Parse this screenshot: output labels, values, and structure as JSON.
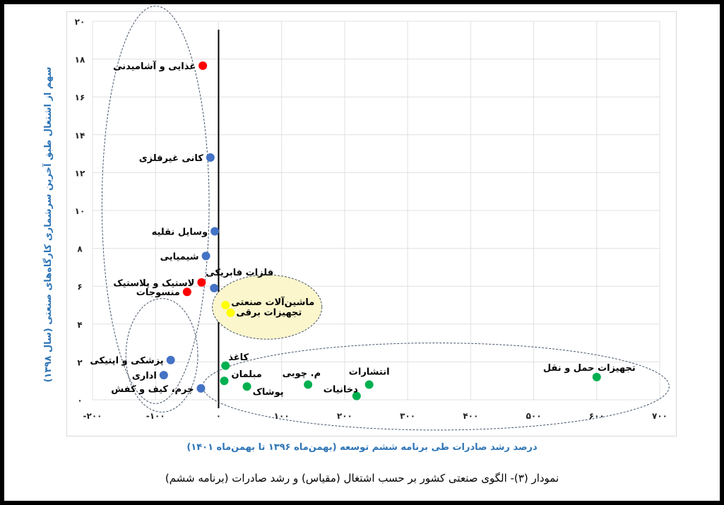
{
  "chart_data": {
    "type": "scatter",
    "title": "نمودار (۳)- الگوی صنعتی کشور بر حسب اشتغال (مقیاس) و رشد صادرات (برنامه ششم)",
    "xlabel": "درصد رشد صادرات طی برنامه ششم توسعه (بهمن‌ماه ۱۳۹۶ تا بهمن‌ماه ۱۴۰۱)",
    "ylabel": "سهم از اشتغال طبق آخرین سرشماری کارگاه‌های صنعتی (سال ۱۳۹۸)",
    "xlim": [
      -200,
      700
    ],
    "ylim": [
      0,
      20
    ],
    "x_ticks": [
      -200,
      -100,
      0,
      100,
      200,
      300,
      400,
      500,
      600,
      700
    ],
    "x_tick_labels": [
      "-۲۰۰",
      "-۱۰۰",
      "۰",
      "۱۰۰",
      "۲۰۰",
      "۳۰۰",
      "۴۰۰",
      "۵۰۰",
      "۶۰۰",
      "۷۰۰"
    ],
    "y_ticks": [
      0,
      2,
      4,
      6,
      8,
      10,
      12,
      14,
      16,
      18,
      20
    ],
    "y_tick_labels": [
      "۰",
      "۲",
      "۴",
      "۶",
      "۸",
      "۱۰",
      "۱۲",
      "۱۴",
      "۱۶",
      "۱۸",
      "۲۰"
    ],
    "grid": true,
    "colors": {
      "red": "#ff0000",
      "blue": "#4472c4",
      "yellow": "#ffff00",
      "green": "#00b050",
      "axis_label": "#2e75b6",
      "highlight_fill": "#fbf6cc"
    },
    "points": [
      {
        "label": "غذایی و آشامیدنی",
        "x": -25,
        "y": 17.65,
        "group": "red"
      },
      {
        "label": "کانی غیرفلزی",
        "x": -13,
        "y": 12.8,
        "group": "blue"
      },
      {
        "label": "وسایل نقلیه",
        "x": -6,
        "y": 8.9,
        "group": "blue"
      },
      {
        "label": "شیمیایی",
        "x": -20,
        "y": 7.6,
        "group": "blue"
      },
      {
        "label": "لاستیک و پلاستیک",
        "x": -27,
        "y": 6.2,
        "group": "red"
      },
      {
        "label": "فلزات فابریکی",
        "x": -7,
        "y": 5.9,
        "group": "blue"
      },
      {
        "label": "منسوجات",
        "x": -50,
        "y": 5.7,
        "group": "red"
      },
      {
        "label": "ماشین‌آلات صنعتی",
        "x": 11,
        "y": 5.0,
        "group": "yellow"
      },
      {
        "label": "تجهیزات برقی",
        "x": 19,
        "y": 4.6,
        "group": "yellow"
      },
      {
        "label": "پزشکی و اپتیکی",
        "x": -76,
        "y": 2.1,
        "group": "blue"
      },
      {
        "label": "اداری",
        "x": -87,
        "y": 1.3,
        "group": "blue"
      },
      {
        "label": "چرم، کیف و کفش",
        "x": -28,
        "y": 0.6,
        "group": "blue"
      },
      {
        "label": "کاغذ",
        "x": 11,
        "y": 1.8,
        "group": "green"
      },
      {
        "label": "مبلمان",
        "x": 9,
        "y": 1.0,
        "group": "green"
      },
      {
        "label": "پوشاک",
        "x": 45,
        "y": 0.7,
        "group": "green"
      },
      {
        "label": "م. چوبی",
        "x": 142,
        "y": 0.8,
        "group": "green"
      },
      {
        "label": "دخانیات",
        "x": 219,
        "y": 0.2,
        "group": "green"
      },
      {
        "label": "انتشارات",
        "x": 239,
        "y": 0.8,
        "group": "green"
      },
      {
        "label": "تجهیزات حمل و نقل",
        "x": 600,
        "y": 1.2,
        "group": "green"
      }
    ]
  }
}
